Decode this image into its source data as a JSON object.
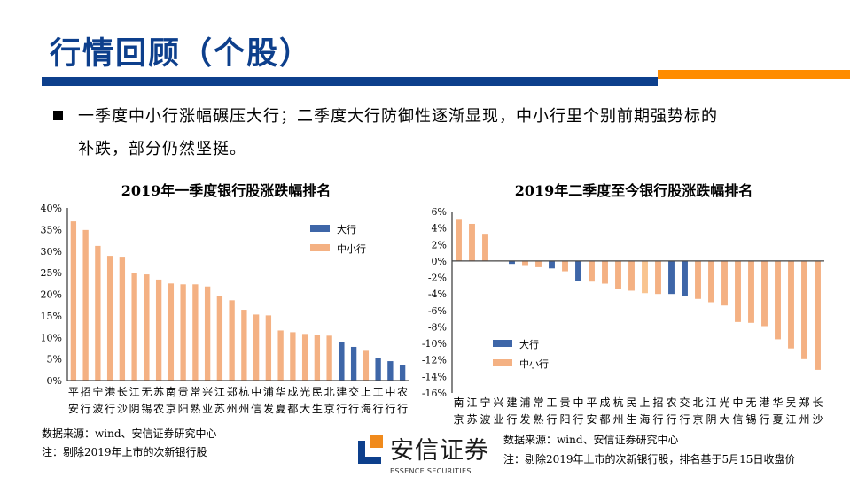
{
  "header": {
    "title": "行情回顾（个股）"
  },
  "colors": {
    "brand_blue": "#0D3F8C",
    "accent_orange": "#FF8C00",
    "large_bank": "#3E66A8",
    "small_bank": "#F4B183",
    "small_bank_light": "#F9C48F"
  },
  "bullet": {
    "icon": "square-bullet-icon",
    "line1": "一季度中小行涨幅碾压大行；二季度大行防御性逐渐显现，中小行里个别前期强势标的",
    "line2": "补跌，部分仍然坚挺。"
  },
  "chart_data": [
    {
      "type": "bar",
      "title": "2019年一季度银行股涨跌幅排名",
      "xlabel": "",
      "ylabel": "",
      "ylim": [
        0,
        40
      ],
      "yticks": [
        "0%",
        "5%",
        "10%",
        "15%",
        "20%",
        "25%",
        "30%",
        "35%",
        "40%"
      ],
      "grid": false,
      "legend": {
        "placement": "top-right",
        "entries": [
          {
            "label": "大行",
            "color": "#3E66A8"
          },
          {
            "label": "中小行",
            "color": "#F4B183"
          }
        ]
      },
      "categories": [
        "平安",
        "招行",
        "宁波",
        "港行",
        "长沙",
        "江阴",
        "无锡",
        "苏农",
        "南京",
        "贵阳",
        "常熟",
        "兴业",
        "江苏",
        "郑州",
        "杭州",
        "中信",
        "浦发",
        "华夏",
        "成都",
        "光大",
        "民生",
        "北京",
        "建行",
        "交行",
        "上海",
        "工行",
        "中行",
        "农行"
      ],
      "values": [
        36.9,
        34.9,
        31.2,
        28.9,
        28.7,
        25.0,
        24.6,
        23.4,
        22.5,
        22.3,
        22.3,
        21.8,
        19.5,
        18.6,
        16.4,
        15.3,
        15.1,
        11.6,
        11.2,
        10.8,
        10.6,
        10.4,
        9.0,
        7.8,
        6.9,
        5.3,
        4.5,
        3.5
      ],
      "groups": [
        "中小行",
        "中小行",
        "中小行",
        "中小行",
        "中小行",
        "中小行",
        "中小行",
        "中小行",
        "中小行",
        "中小行",
        "中小行",
        "中小行",
        "中小行",
        "中小行",
        "中小行",
        "中小行",
        "中小行",
        "中小行",
        "中小行",
        "中小行",
        "中小行",
        "中小行",
        "大行",
        "大行",
        "中小行",
        "大行",
        "大行",
        "大行"
      ]
    },
    {
      "type": "bar",
      "title": "2019年二季度至今银行股涨跌幅排名",
      "xlabel": "",
      "ylabel": "",
      "ylim": [
        -16,
        6
      ],
      "yticks": [
        "-16%",
        "-14%",
        "-12%",
        "-10%",
        "-8%",
        "-6%",
        "-4%",
        "-2%",
        "0%",
        "2%",
        "4%",
        "6%"
      ],
      "grid": false,
      "legend": {
        "placement": "bottom-left",
        "entries": [
          {
            "label": "大行",
            "color": "#3E66A8"
          },
          {
            "label": "中小行",
            "color": "#F4B183"
          }
        ]
      },
      "categories": [
        "南京",
        "江苏",
        "宁波",
        "兴业",
        "建行",
        "浦发",
        "常熟",
        "工行",
        "贵阳",
        "中行",
        "平安",
        "成都",
        "杭州",
        "民生",
        "上海",
        "招行",
        "农行",
        "交行",
        "北京",
        "江阴",
        "光大",
        "中信",
        "无锡",
        "港行",
        "华夏",
        "吴江",
        "郑州",
        "长沙"
      ],
      "values": [
        5.0,
        4.5,
        3.3,
        0.05,
        -0.35,
        -0.6,
        -0.75,
        -0.9,
        -1.25,
        -2.4,
        -2.5,
        -2.75,
        -3.4,
        -3.6,
        -3.9,
        -4.0,
        -4.0,
        -4.3,
        -4.6,
        -5.0,
        -5.4,
        -7.4,
        -7.5,
        -7.9,
        -9.5,
        -10.6,
        -11.9,
        -13.2
      ],
      "groups": [
        "中小行",
        "中小行",
        "中小行",
        "中小行",
        "大行",
        "中小行",
        "中小行",
        "大行",
        "中小行",
        "大行",
        "中小行",
        "中小行",
        "中小行",
        "中小行",
        "中小行",
        "中小行",
        "大行",
        "大行",
        "中小行",
        "中小行",
        "中小行",
        "中小行",
        "中小行",
        "中小行",
        "中小行",
        "中小行",
        "中小行",
        "中小行"
      ]
    }
  ],
  "footer": {
    "left_source": "数据来源：wind、安信证券研究中心",
    "left_note": "注：剔除2019年上市的次新银行股",
    "right_source": "数据来源：wind、安信证券研究中心",
    "right_note": "注：剔除2019年上市的次新银行股，排名基于5月15日收盘价",
    "logo_cn": "安信证券",
    "logo_en": "ESSENCE SECURITIES"
  }
}
